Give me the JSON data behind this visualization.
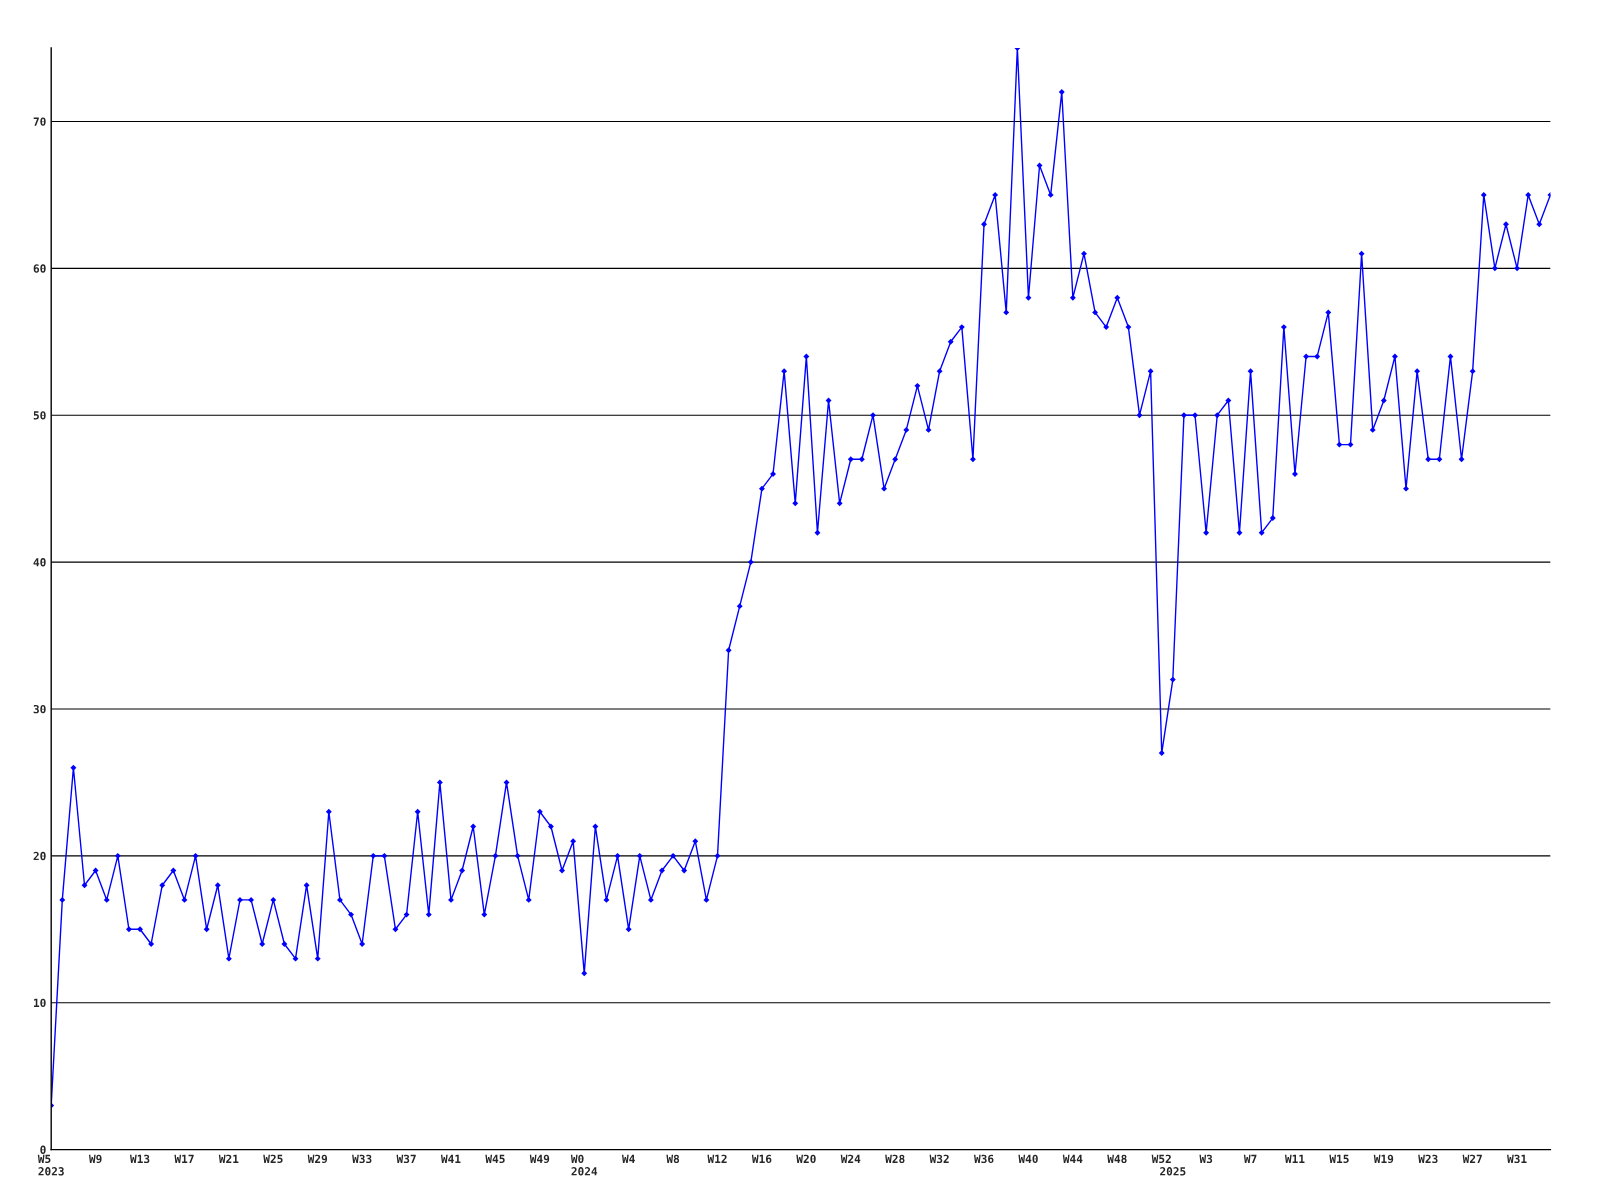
{
  "chart_data": {
    "type": "line",
    "categories": [
      "W5\n2023",
      null,
      null,
      null,
      "W9",
      null,
      null,
      null,
      "W13",
      null,
      null,
      null,
      "W17",
      null,
      null,
      null,
      "W21",
      null,
      null,
      null,
      "W25",
      null,
      null,
      null,
      "W29",
      null,
      null,
      null,
      "W33",
      null,
      null,
      null,
      "W37",
      null,
      null,
      null,
      "W41",
      null,
      null,
      null,
      "W45",
      null,
      null,
      null,
      "W49",
      null,
      null,
      null,
      "W0\n2024",
      null,
      null,
      null,
      "W4",
      null,
      null,
      null,
      "W8",
      null,
      null,
      null,
      "W12",
      null,
      null,
      null,
      "W16",
      null,
      null,
      null,
      "W20",
      null,
      null,
      null,
      "W24",
      null,
      null,
      null,
      "W28",
      null,
      null,
      null,
      "W32",
      null,
      null,
      null,
      "W36",
      null,
      null,
      null,
      "W40",
      null,
      null,
      null,
      "W44",
      null,
      null,
      null,
      "W48",
      null,
      null,
      null,
      "W52",
      "\n2025",
      null,
      null,
      "W3",
      null,
      null,
      null,
      "W7",
      null,
      null,
      null,
      "W11",
      null,
      null,
      null,
      "W15",
      null,
      null,
      null,
      "W19",
      null,
      null,
      null,
      "W23",
      null,
      null,
      null,
      "W27",
      null,
      null,
      null,
      "W31",
      null,
      null,
      null
    ],
    "series": [
      {
        "color": "#0000ff",
        "values": [
          3,
          17,
          26,
          18,
          19,
          17,
          20,
          15,
          15,
          14,
          18,
          19,
          17,
          20,
          15,
          18,
          13,
          17,
          17,
          14,
          17,
          14,
          13,
          18,
          13,
          23,
          17,
          16,
          14,
          20,
          20,
          15,
          16,
          23,
          16,
          25,
          17,
          19,
          22,
          16,
          20,
          25,
          20,
          17,
          23,
          22,
          19,
          21,
          12,
          22,
          17,
          20,
          15,
          20,
          17,
          19,
          20,
          19,
          21,
          17,
          20,
          34,
          37,
          40,
          45,
          46,
          53,
          44,
          54,
          42,
          51,
          44,
          47,
          47,
          50,
          45,
          47,
          49,
          52,
          49,
          53,
          55,
          56,
          47,
          63,
          65,
          57,
          75,
          58,
          67,
          65,
          72,
          58,
          61,
          57,
          56,
          58,
          56,
          50,
          53,
          27,
          32,
          50,
          50,
          42,
          50,
          51,
          42,
          53,
          42,
          43,
          56,
          46,
          54,
          54,
          57,
          48,
          48,
          61,
          49,
          51,
          54,
          45,
          53,
          47,
          47,
          54,
          47,
          53,
          65,
          60,
          63,
          60,
          65,
          63,
          65
        ]
      }
    ],
    "ylim": [
      0,
      75
    ],
    "yticks": [
      0,
      10,
      20,
      30,
      40,
      50,
      60,
      70
    ],
    "grid": "y",
    "marker": "diamond",
    "line_style": "solid"
  }
}
